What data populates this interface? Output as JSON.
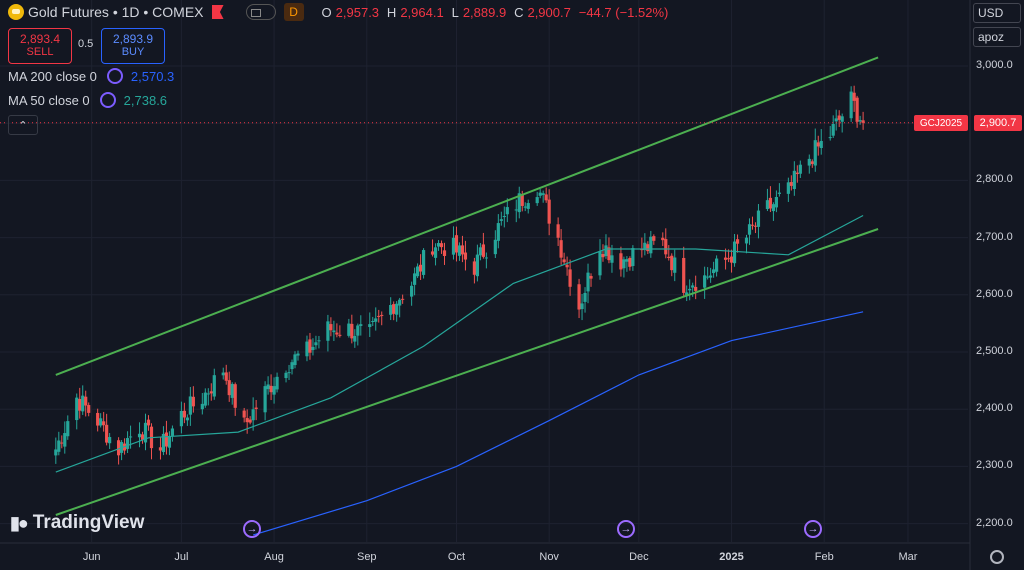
{
  "header": {
    "title": "Gold Futures • 1D • COMEX",
    "interval_badge": "D",
    "ohlc": {
      "o_label": "O",
      "o": "2,957.3",
      "h_label": "H",
      "h": "2,964.1",
      "l_label": "L",
      "l": "2,889.9",
      "c_label": "C",
      "c": "2,900.7",
      "change": "−44.7 (−1.52%)"
    }
  },
  "trade": {
    "sell_price": "2,893.4",
    "sell_label": "SELL",
    "spread": "0.5",
    "buy_price": "2,893.9",
    "buy_label": "BUY"
  },
  "indicators": [
    {
      "label": "MA 200 close 0",
      "value": "2,570.3",
      "color": "#2962ff"
    },
    {
      "label": "MA 50 close 0",
      "value": "2,738.6",
      "color": "#26a69a"
    }
  ],
  "collapse_icon": "chevron-up-icon",
  "right_panel": {
    "currency": "USD",
    "unit": "apoz"
  },
  "price_tag": {
    "symbol": "GCJ2025",
    "value": "2,900.7"
  },
  "branding": "TradingView",
  "colors": {
    "up": "#26a69a",
    "down": "#ef5350",
    "channel": "#4caf50",
    "ma50": "#26a69a",
    "ma200": "#2962ff",
    "bg": "#131722"
  },
  "chart_data": {
    "type": "candlestick",
    "y_axis_labels": [
      "3,000.0",
      "2,900.0",
      "2,800.0",
      "2,700.0",
      "2,600.0",
      "2,500.0",
      "2,400.0",
      "2,300.0",
      "2,200.0"
    ],
    "ylim": [
      2180,
      3040
    ],
    "x_axis_labels": [
      "Jun",
      "Jul",
      "Aug",
      "Sep",
      "Oct",
      "Nov",
      "Dec",
      "2025",
      "Feb",
      "Mar"
    ],
    "close_path": [
      [
        "2024-05-20",
        2330
      ],
      [
        "2024-05-27",
        2420
      ],
      [
        "2024-06-03",
        2380
      ],
      [
        "2024-06-10",
        2330
      ],
      [
        "2024-06-17",
        2370
      ],
      [
        "2024-06-24",
        2330
      ],
      [
        "2024-07-01",
        2390
      ],
      [
        "2024-07-08",
        2420
      ],
      [
        "2024-07-15",
        2470
      ],
      [
        "2024-07-22",
        2370
      ],
      [
        "2024-07-29",
        2430
      ],
      [
        "2024-08-05",
        2480
      ],
      [
        "2024-08-12",
        2500
      ],
      [
        "2024-08-19",
        2540
      ],
      [
        "2024-08-26",
        2540
      ],
      [
        "2024-09-02",
        2530
      ],
      [
        "2024-09-09",
        2580
      ],
      [
        "2024-09-16",
        2620
      ],
      [
        "2024-09-23",
        2690
      ],
      [
        "2024-09-30",
        2680
      ],
      [
        "2024-10-07",
        2650
      ],
      [
        "2024-10-14",
        2710
      ],
      [
        "2024-10-21",
        2760
      ],
      [
        "2024-10-28",
        2790
      ],
      [
        "2024-11-04",
        2700
      ],
      [
        "2024-11-11",
        2580
      ],
      [
        "2024-11-18",
        2690
      ],
      [
        "2024-11-25",
        2660
      ],
      [
        "2024-12-02",
        2680
      ],
      [
        "2024-12-09",
        2690
      ],
      [
        "2024-12-16",
        2620
      ],
      [
        "2024-12-23",
        2630
      ],
      [
        "2024-12-30",
        2660
      ],
      [
        "2025-01-06",
        2700
      ],
      [
        "2025-01-13",
        2750
      ],
      [
        "2025-01-20",
        2780
      ],
      [
        "2025-01-27",
        2840
      ],
      [
        "2025-02-03",
        2880
      ],
      [
        "2025-02-10",
        2940
      ],
      [
        "2025-02-14",
        2900.7
      ]
    ],
    "ma200_path": [
      [
        "2024-07-25",
        2180
      ],
      [
        "2024-09-01",
        2240
      ],
      [
        "2024-10-01",
        2300
      ],
      [
        "2024-11-01",
        2380
      ],
      [
        "2024-12-01",
        2460
      ],
      [
        "2025-01-01",
        2520
      ],
      [
        "2025-02-14",
        2570.3
      ]
    ],
    "ma50_path": [
      [
        "2024-05-20",
        2290
      ],
      [
        "2024-06-20",
        2350
      ],
      [
        "2024-07-20",
        2360
      ],
      [
        "2024-08-20",
        2420
      ],
      [
        "2024-09-20",
        2510
      ],
      [
        "2024-10-20",
        2620
      ],
      [
        "2024-11-20",
        2680
      ],
      [
        "2024-12-20",
        2680
      ],
      [
        "2025-01-20",
        2670
      ],
      [
        "2025-02-14",
        2738.6
      ]
    ],
    "channel_upper": [
      [
        "2024-05-20",
        2460
      ],
      [
        "2025-02-19",
        3015
      ]
    ],
    "channel_lower": [
      [
        "2024-05-20",
        2215
      ],
      [
        "2025-02-19",
        2715
      ]
    ],
    "last_price": 2900.7
  }
}
